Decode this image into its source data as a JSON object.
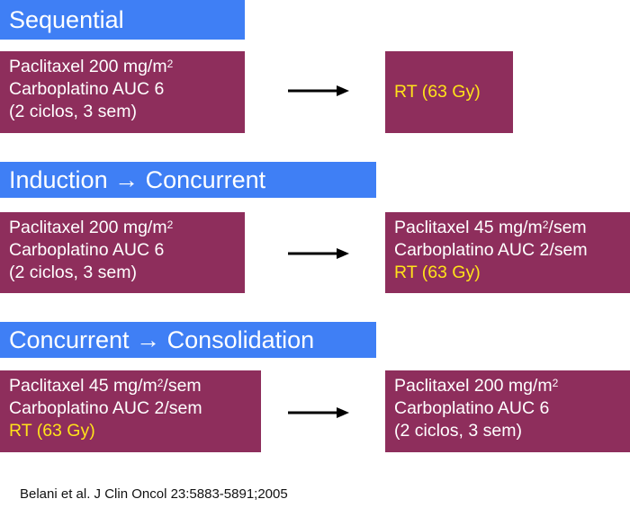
{
  "sections": [
    {
      "title": "Sequential",
      "left": [
        {
          "text": "Paclitaxel 200 mg/m",
          "sup": "2",
          "rest": "",
          "highlight": false
        },
        {
          "text": "Carboplatino AUC 6",
          "sup": "",
          "rest": "",
          "highlight": false
        },
        {
          "text": "(2 ciclos, 3 sem)",
          "sup": "",
          "rest": "",
          "highlight": false
        }
      ],
      "right": [
        {
          "text": "RT (63 Gy)",
          "sup": "",
          "rest": "",
          "highlight": true
        }
      ]
    },
    {
      "title": "Induction → Concurrent",
      "left": [
        {
          "text": "Paclitaxel 200 mg/m",
          "sup": "2",
          "rest": "",
          "highlight": false
        },
        {
          "text": "Carboplatino AUC 6",
          "sup": "",
          "rest": "",
          "highlight": false
        },
        {
          "text": "(2 ciclos, 3 sem)",
          "sup": "",
          "rest": "",
          "highlight": false
        }
      ],
      "right": [
        {
          "text": "Paclitaxel 45 mg/m",
          "sup": "2",
          "rest": "/sem",
          "highlight": false
        },
        {
          "text": "Carboplatino AUC 2/sem",
          "sup": "",
          "rest": "",
          "highlight": false
        },
        {
          "text": "RT (63 Gy)",
          "sup": "",
          "rest": "",
          "highlight": true
        }
      ]
    },
    {
      "title": "Concurrent → Consolidation",
      "left": [
        {
          "text": "Paclitaxel 45 mg/m",
          "sup": "2",
          "rest": "/sem",
          "highlight": false
        },
        {
          "text": "Carboplatino AUC 2/sem",
          "sup": "",
          "rest": "",
          "highlight": false
        },
        {
          "text": "RT (63 Gy)",
          "sup": "",
          "rest": "",
          "highlight": true
        }
      ],
      "right": [
        {
          "text": "Paclitaxel 200 mg/m",
          "sup": "2",
          "rest": "",
          "highlight": false
        },
        {
          "text": "Carboplatino AUC 6",
          "sup": "",
          "rest": "",
          "highlight": false
        },
        {
          "text": "(2 ciclos, 3 sem)",
          "sup": "",
          "rest": "",
          "highlight": false
        }
      ]
    }
  ],
  "citation": "Belani et al. J Clin Oncol 23:5883-5891;2005",
  "colors": {
    "header_bg": "#3f7ff5",
    "box_bg": "#8e2e5c",
    "box_text": "#ffffff",
    "highlight_text": "#ffe21a",
    "arrow": "#000000"
  }
}
